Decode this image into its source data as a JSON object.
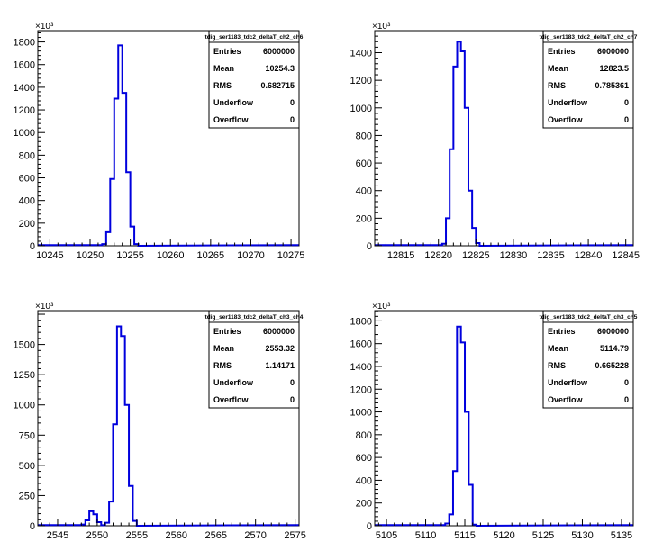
{
  "exponent_label": "×10³",
  "colors": {
    "histogram": "#0000dd",
    "axis": "#000000",
    "background": "#ffffff"
  },
  "chart_data": [
    {
      "type": "bar",
      "title": "tdig_ser1183_tdc2_deltaT_ch2_ch6",
      "xlabel": "",
      "ylabel": "",
      "xlim": [
        10243.5,
        10276
      ],
      "ylim": [
        0,
        1900
      ],
      "y_exponent": 3,
      "xticks": [
        10245,
        10250,
        10255,
        10260,
        10265,
        10270,
        10275
      ],
      "yticks": [
        0,
        200,
        400,
        600,
        800,
        1000,
        1200,
        1400,
        1600,
        1800
      ],
      "ytick_labels": [
        "0",
        "200",
        "400",
        "600",
        "800",
        "1000",
        "1200",
        "1400",
        "1600",
        "1800"
      ],
      "bin_width": 0.5,
      "bins": [
        {
          "x": 10251.75,
          "y": 15
        },
        {
          "x": 10252.25,
          "y": 120
        },
        {
          "x": 10252.75,
          "y": 590
        },
        {
          "x": 10253.25,
          "y": 1300
        },
        {
          "x": 10253.75,
          "y": 1770
        },
        {
          "x": 10254.25,
          "y": 1350
        },
        {
          "x": 10254.75,
          "y": 650
        },
        {
          "x": 10255.25,
          "y": 170
        },
        {
          "x": 10255.75,
          "y": 15
        }
      ],
      "stats": [
        {
          "label": "Entries",
          "value": "6000000"
        },
        {
          "label": "Mean",
          "value": "10254.3"
        },
        {
          "label": "RMS",
          "value": "0.682715"
        },
        {
          "label": "Underflow",
          "value": "0"
        },
        {
          "label": "Overflow",
          "value": "0"
        }
      ]
    },
    {
      "type": "bar",
      "title": "tdig_ser1183_tdc2_deltaT_ch2_ch7",
      "xlabel": "",
      "ylabel": "",
      "xlim": [
        12811.5,
        12846
      ],
      "ylim": [
        0,
        1560
      ],
      "y_exponent": 3,
      "xticks": [
        12815,
        12820,
        12825,
        12830,
        12835,
        12840,
        12845
      ],
      "yticks": [
        0,
        200,
        400,
        600,
        800,
        1000,
        1200,
        1400
      ],
      "ytick_labels": [
        "0",
        "200",
        "400",
        "600",
        "800",
        "1000",
        "1200",
        "1400"
      ],
      "bin_width": 0.5,
      "bins": [
        {
          "x": 12820.75,
          "y": 15
        },
        {
          "x": 12821.25,
          "y": 200
        },
        {
          "x": 12821.75,
          "y": 700
        },
        {
          "x": 12822.25,
          "y": 1300
        },
        {
          "x": 12822.75,
          "y": 1480
        },
        {
          "x": 12823.25,
          "y": 1410
        },
        {
          "x": 12823.75,
          "y": 1000
        },
        {
          "x": 12824.25,
          "y": 400
        },
        {
          "x": 12824.75,
          "y": 130
        },
        {
          "x": 12825.25,
          "y": 20
        }
      ],
      "stats": [
        {
          "label": "Entries",
          "value": "6000000"
        },
        {
          "label": "Mean",
          "value": "12823.5"
        },
        {
          "label": "RMS",
          "value": "0.785361"
        },
        {
          "label": "Underflow",
          "value": "0"
        },
        {
          "label": "Overflow",
          "value": "0"
        }
      ]
    },
    {
      "type": "bar",
      "title": "tdig_ser1183_tdc2_deltaT_ch3_ch4",
      "xlabel": "",
      "ylabel": "",
      "xlim": [
        2542.5,
        2575.5
      ],
      "ylim": [
        0,
        1780
      ],
      "y_exponent": 3,
      "xticks": [
        2545,
        2550,
        2555,
        2560,
        2565,
        2570,
        2575
      ],
      "yticks": [
        0,
        250,
        500,
        750,
        1000,
        1250,
        1500
      ],
      "ytick_labels": [
        "0",
        "250",
        "500",
        "750",
        "1000",
        "1250",
        "1500"
      ],
      "bin_width": 0.5,
      "bins": [
        {
          "x": 2548.25,
          "y": 10
        },
        {
          "x": 2548.75,
          "y": 45
        },
        {
          "x": 2549.25,
          "y": 120
        },
        {
          "x": 2549.75,
          "y": 95
        },
        {
          "x": 2550.25,
          "y": 30
        },
        {
          "x": 2550.75,
          "y": 5
        },
        {
          "x": 2551.25,
          "y": 25
        },
        {
          "x": 2551.75,
          "y": 200
        },
        {
          "x": 2552.25,
          "y": 840
        },
        {
          "x": 2552.75,
          "y": 1650
        },
        {
          "x": 2553.25,
          "y": 1570
        },
        {
          "x": 2553.75,
          "y": 1000
        },
        {
          "x": 2554.25,
          "y": 330
        },
        {
          "x": 2554.75,
          "y": 40
        }
      ],
      "stats": [
        {
          "label": "Entries",
          "value": "6000000"
        },
        {
          "label": "Mean",
          "value": "2553.32"
        },
        {
          "label": "RMS",
          "value": "1.14171"
        },
        {
          "label": "Underflow",
          "value": "0"
        },
        {
          "label": "Overflow",
          "value": "0"
        }
      ]
    },
    {
      "type": "bar",
      "title": "tdig_ser1183_tdc2_deltaT_ch3_ch5",
      "xlabel": "",
      "ylabel": "",
      "xlim": [
        5103.5,
        5136.5
      ],
      "ylim": [
        0,
        1890
      ],
      "y_exponent": 3,
      "xticks": [
        5105,
        5110,
        5115,
        5120,
        5125,
        5130,
        5135
      ],
      "yticks": [
        0,
        200,
        400,
        600,
        800,
        1000,
        1200,
        1400,
        1600,
        1800
      ],
      "ytick_labels": [
        "0",
        "200",
        "400",
        "600",
        "800",
        "1000",
        "1200",
        "1400",
        "1600",
        "1800"
      ],
      "bin_width": 0.5,
      "bins": [
        {
          "x": 5112.75,
          "y": 20
        },
        {
          "x": 5113.25,
          "y": 100
        },
        {
          "x": 5113.75,
          "y": 480
        },
        {
          "x": 5114.25,
          "y": 1750
        },
        {
          "x": 5114.75,
          "y": 1610
        },
        {
          "x": 5115.25,
          "y": 1000
        },
        {
          "x": 5115.75,
          "y": 360
        },
        {
          "x": 5116.25,
          "y": 10
        }
      ],
      "stats": [
        {
          "label": "Entries",
          "value": "6000000"
        },
        {
          "label": "Mean",
          "value": "5114.79"
        },
        {
          "label": "RMS",
          "value": "0.665228"
        },
        {
          "label": "Underflow",
          "value": "0"
        },
        {
          "label": "Overflow",
          "value": "0"
        }
      ]
    }
  ]
}
